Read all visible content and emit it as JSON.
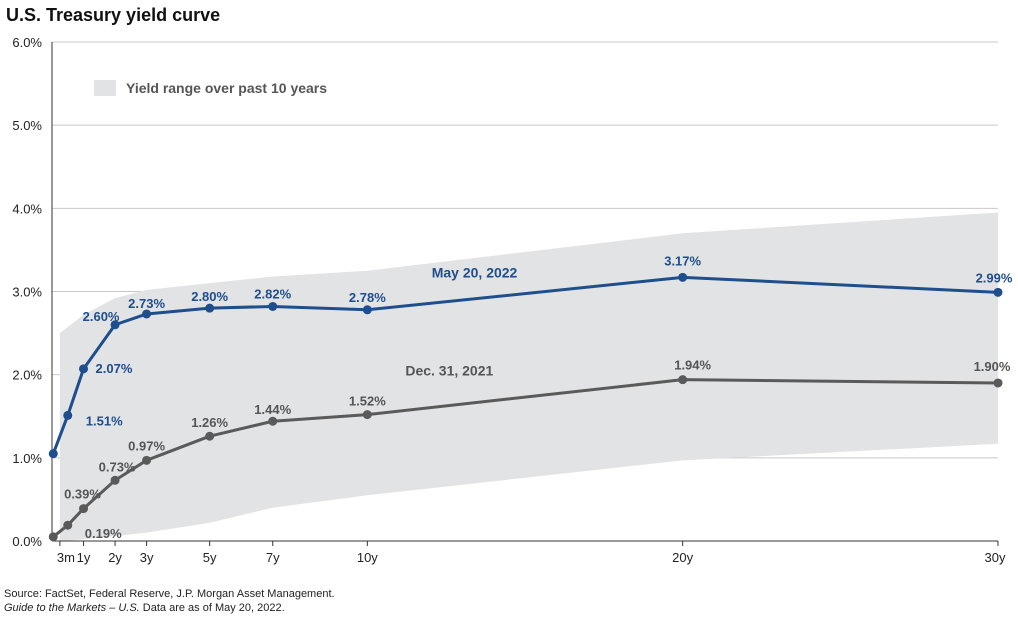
{
  "title": "U.S. Treasury yield curve",
  "footer": {
    "source": "Source: FactSet, Federal Reserve, J.P. Morgan Asset Management.",
    "guide_italic": "Guide to the Markets – U.S.",
    "guide_rest": " Data are as of May 20, 2022."
  },
  "colors": {
    "blue": "#1f4e8c",
    "gray": "#5a5a5a",
    "band": "#e2e3e5"
  },
  "chart_data": {
    "type": "line",
    "title": "U.S. Treasury yield curve",
    "xlabel": "",
    "ylabel": "",
    "ylim": [
      0,
      6
    ],
    "y_ticks": [
      "0.0%",
      "1.0%",
      "2.0%",
      "3.0%",
      "4.0%",
      "5.0%",
      "6.0%"
    ],
    "x_positions_years": [
      0.25,
      1,
      2,
      3,
      5,
      7,
      10,
      20,
      30
    ],
    "categories": [
      "3m",
      "1y",
      "2y",
      "3y",
      "5y",
      "7y",
      "10y",
      "20y",
      "30y"
    ],
    "range_band": {
      "name": "Yield range over past 10 years",
      "lower": [
        0.0,
        0.02,
        0.06,
        0.1,
        0.22,
        0.4,
        0.55,
        0.97,
        1.17
      ],
      "upper": [
        2.5,
        2.72,
        2.92,
        3.02,
        3.1,
        3.18,
        3.25,
        3.7,
        3.95
      ]
    },
    "series": [
      {
        "name": "May 20, 2022",
        "x": [
          0.04,
          0.5,
          1,
          2,
          3,
          5,
          7,
          10,
          20,
          30
        ],
        "values": [
          1.05,
          1.51,
          2.07,
          2.6,
          2.73,
          2.8,
          2.82,
          2.78,
          3.17,
          2.99
        ],
        "labels": [
          "",
          "1.51%",
          "2.07%",
          "2.60%",
          "2.73%",
          "2.80%",
          "2.82%",
          "2.78%",
          "3.17%",
          "2.99%"
        ]
      },
      {
        "name": "Dec. 31, 2021",
        "x": [
          0.04,
          0.5,
          1,
          2,
          3,
          5,
          7,
          10,
          20,
          30
        ],
        "values": [
          0.05,
          0.19,
          0.39,
          0.73,
          0.97,
          1.26,
          1.44,
          1.52,
          1.94,
          1.9
        ],
        "labels": [
          "",
          "0.19%",
          "0.39%",
          "0.73%",
          "0.97%",
          "1.26%",
          "1.44%",
          "1.52%",
          "1.94%",
          "1.90%"
        ]
      }
    ]
  }
}
